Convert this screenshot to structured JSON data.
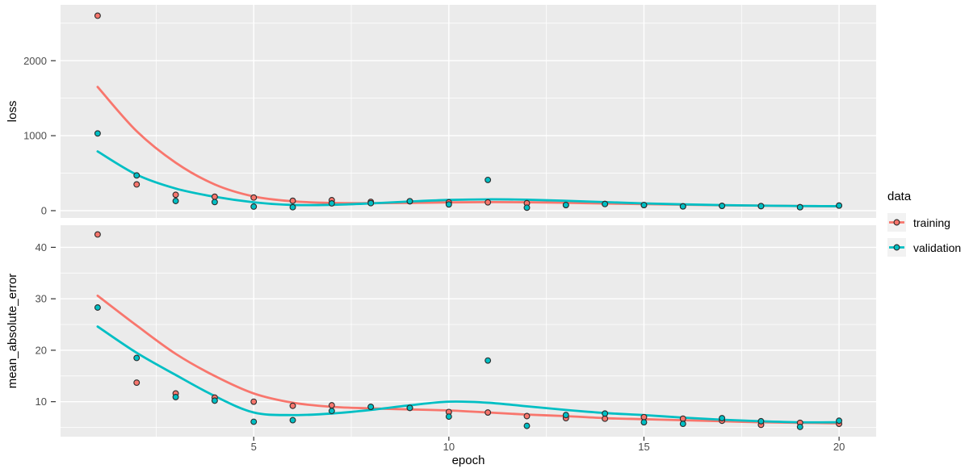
{
  "chart_data": {
    "type": "scatter",
    "title": "",
    "xlabel": "epoch",
    "x": [
      1,
      2,
      3,
      4,
      5,
      6,
      7,
      8,
      9,
      10,
      11,
      12,
      13,
      14,
      15,
      16,
      17,
      18,
      19,
      20
    ],
    "xlim": [
      0.05,
      20.95
    ],
    "xticks": [
      5,
      10,
      15,
      20
    ],
    "xminor": [
      2.5,
      7.5,
      12.5,
      17.5
    ],
    "legend": {
      "title": "data",
      "position": "right",
      "entries": [
        {
          "label": "training",
          "color": "#F8766D"
        },
        {
          "label": "validation",
          "color": "#00BFC4"
        }
      ]
    },
    "facets": [
      {
        "ylabel": "loss",
        "ylim": [
          -97,
          2745
        ],
        "yticks": [
          0,
          1000,
          2000
        ],
        "yminor": [
          500,
          1500,
          2500
        ],
        "series": [
          {
            "name": "training",
            "color": "#F8766D",
            "points": [
              2600,
              350,
              212,
              186,
              175,
              132,
              140,
              118,
              126,
              111,
              111,
              100,
              75,
              89,
              75,
              57,
              64,
              61,
              46,
              68
            ],
            "smooth": [
              1650,
              1060,
              640,
              350,
              190,
              125,
              103,
              100,
              104,
              110,
              114,
              112,
              105,
              96,
              87,
              79,
              72,
              67,
              62,
              58
            ]
          },
          {
            "name": "validation",
            "color": "#00BFC4",
            "points": [
              1030,
              470,
              129,
              115,
              54,
              46,
              97,
              100,
              126,
              83,
              410,
              40,
              75,
              89,
              75,
              57,
              64,
              61,
              46,
              68
            ],
            "smooth": [
              790,
              480,
              295,
              185,
              112,
              76,
              78,
              97,
              122,
              143,
              151,
              146,
              132,
              114,
              97,
              84,
              74,
              67,
              62,
              60
            ]
          }
        ]
      },
      {
        "ylabel": "mean_absolute_error",
        "ylim": [
          3.2,
          44.3
        ],
        "yticks": [
          10,
          20,
          30,
          40
        ],
        "yminor": [
          5,
          15,
          25,
          35
        ],
        "series": [
          {
            "name": "training",
            "color": "#F8766D",
            "points": [
              42.5,
              13.7,
              11.6,
              10.8,
              10.0,
              9.2,
              9.3,
              9.0,
              8.8,
              8.0,
              7.9,
              7.2,
              6.8,
              6.7,
              7.0,
              6.7,
              6.3,
              5.5,
              5.9,
              5.7
            ],
            "smooth": [
              30.6,
              24.8,
              19.3,
              15.0,
              11.6,
              9.8,
              9.0,
              8.7,
              8.5,
              8.3,
              7.9,
              7.5,
              7.2,
              6.8,
              6.6,
              6.4,
              6.2,
              6.0,
              5.9,
              5.8
            ]
          },
          {
            "name": "validation",
            "color": "#00BFC4",
            "points": [
              28.3,
              18.5,
              10.9,
              10.2,
              6.1,
              6.4,
              8.2,
              9.0,
              8.8,
              7.1,
              18.0,
              5.3,
              7.4,
              7.7,
              6.0,
              5.7,
              6.8,
              6.2,
              5.1,
              6.3
            ],
            "smooth": [
              24.6,
              19.5,
              15.2,
              11.1,
              7.9,
              7.4,
              7.7,
              8.4,
              9.3,
              10.0,
              9.8,
              9.1,
              8.4,
              7.8,
              7.4,
              6.9,
              6.5,
              6.2,
              6.0,
              6.0
            ]
          }
        ]
      }
    ],
    "style": {
      "panel_bg": "#EBEBEB",
      "grid_major": "#FFFFFF",
      "grid_minor": "#FFFFFF",
      "tick_mark": "#333333",
      "tick_text": "#4D4D4D",
      "title_text": "#000000",
      "point_stroke": "#2b2b2b",
      "legend_key_bg": "#F2F2F2"
    }
  }
}
